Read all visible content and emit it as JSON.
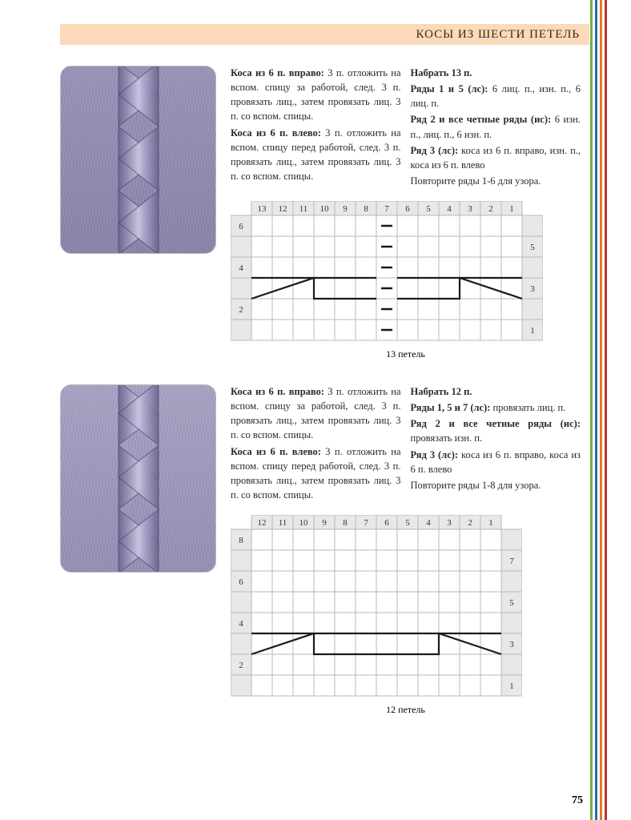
{
  "header": {
    "title": "КОСЫ ИЗ ШЕСТИ ПЕТЕЛЬ"
  },
  "page_number": "75",
  "stripes": [
    "#76b043",
    "#1a6fb0",
    "#e57a1f",
    "#b5322b"
  ],
  "pattern1": {
    "photo_bg": "#9a94b8",
    "col_left": [
      {
        "b": "Коса из 6 п. вправо:",
        "t": " 3 п. отложить на вспом. спицу за работой, след. 3 п. провязать лиц., затем провязать лиц. 3 п. со вспом. спицы."
      },
      {
        "b": "Коса из 6 п. влево:",
        "t": " 3 п. отложить на вспом. спицу перед работой, след. 3 п. провязать лиц., затем провязать лиц. 3 п. со вспом. спицы."
      }
    ],
    "col_right": [
      {
        "b": "Набрать 13 п.",
        "t": ""
      },
      {
        "b": "Ряды 1 и 5 (лс):",
        "t": " 6 лиц. п., изн. п., 6 лиц. п."
      },
      {
        "b": "Ряд 2 и все четные ряды (ис):",
        "t": " 6 изн. п., лиц. п., 6 изн. п."
      },
      {
        "b": "Ряд 3 (лс):",
        "t": " коса из 6 п. вправо, изн. п., коса из 6 п. влево"
      },
      {
        "b": "",
        "t": "Повторите ряды 1-6 для узора."
      }
    ],
    "chart": {
      "cols": 13,
      "rows": 6,
      "cell": 26,
      "col_labels": [
        "13",
        "12",
        "11",
        "10",
        "9",
        "8",
        "7",
        "6",
        "5",
        "4",
        "3",
        "2",
        "1"
      ],
      "left_row_labels": {
        "6": "6",
        "4": "4",
        "2": "2"
      },
      "right_row_labels": {
        "5": "5",
        "3": "3",
        "1": "1"
      },
      "caption": "13 петель",
      "purl_col": 7,
      "cables": [
        {
          "type": "right",
          "row": 3,
          "cols": [
            8,
            13
          ]
        },
        {
          "type": "left",
          "row": 3,
          "cols": [
            1,
            6
          ]
        }
      ],
      "grid_color": "#b8b8b8",
      "label_bg": "#e8e8e8",
      "line_color": "#1a1a1a"
    }
  },
  "pattern2": {
    "photo_bg": "#a9a2c4",
    "col_left": [
      {
        "b": "Коса из 6 п. вправо:",
        "t": " 3 п. отложить на вспом. спицу за работой, след. 3 п. провязать лиц., затем провязать лиц. 3 п. со вспом. спицы."
      },
      {
        "b": "Коса из 6 п. влево:",
        "t": " 3 п. отложить на вспом. спицу перед работой, след. 3 п. провязать лиц., затем провязать лиц. 3 п. со вспом. спицы."
      }
    ],
    "col_right": [
      {
        "b": "Набрать 12 п.",
        "t": ""
      },
      {
        "b": "Ряды 1, 5 и 7 (лс):",
        "t": " провязать лиц. п."
      },
      {
        "b": "Ряд 2 и все четные ряды (ис):",
        "t": " провязать изн. п."
      },
      {
        "b": "Ряд 3 (лс):",
        "t": " коса из 6 п. вправо, коса из 6 п. влево"
      },
      {
        "b": "",
        "t": "Повторите ряды 1-8 для узора."
      }
    ],
    "chart": {
      "cols": 12,
      "rows": 8,
      "cell": 26,
      "col_labels": [
        "12",
        "11",
        "10",
        "9",
        "8",
        "7",
        "6",
        "5",
        "4",
        "3",
        "2",
        "1"
      ],
      "left_row_labels": {
        "8": "8",
        "6": "6",
        "4": "4",
        "2": "2"
      },
      "right_row_labels": {
        "7": "7",
        "5": "5",
        "3": "3",
        "1": "1"
      },
      "caption": "12 петель",
      "purl_col": 0,
      "cables": [
        {
          "type": "right",
          "row": 3,
          "cols": [
            7,
            12
          ]
        },
        {
          "type": "left",
          "row": 3,
          "cols": [
            1,
            6
          ]
        }
      ],
      "grid_color": "#b8b8b8",
      "label_bg": "#e8e8e8",
      "line_color": "#1a1a1a"
    }
  }
}
